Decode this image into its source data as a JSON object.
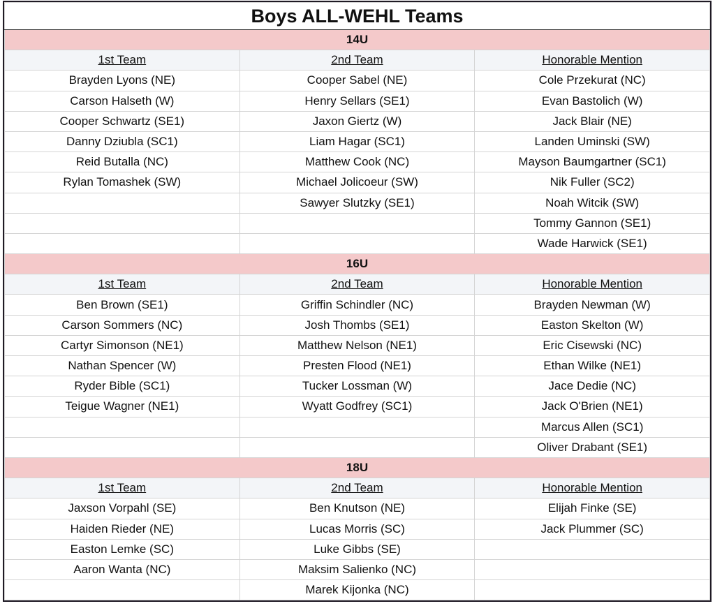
{
  "title": "Boys ALL-WEHL Teams",
  "column_headers": [
    "1st Team",
    "2nd Team",
    "Honorable Mention"
  ],
  "colors": {
    "band": "#f4c9ca",
    "header_row": "#f3f5f8"
  },
  "sections": [
    {
      "label": "14U",
      "rows": [
        [
          "Brayden Lyons (NE)",
          "Cooper Sabel (NE)",
          "Cole Przekurat (NC)"
        ],
        [
          "Carson Halseth (W)",
          "Henry Sellars (SE1)",
          "Evan Bastolich (W)"
        ],
        [
          "Cooper Schwartz (SE1)",
          "Jaxon Giertz (W)",
          "Jack Blair (NE)"
        ],
        [
          "Danny Dziubla (SC1)",
          "Liam Hagar (SC1)",
          "Landen Uminski (SW)"
        ],
        [
          "Reid Butalla (NC)",
          "Matthew Cook (NC)",
          "Mayson Baumgartner (SC1)"
        ],
        [
          "Rylan Tomashek (SW)",
          "Michael Jolicoeur (SW)",
          "Nik Fuller (SC2)"
        ],
        [
          "",
          "Sawyer Slutzky (SE1)",
          "Noah Witcik (SW)"
        ],
        [
          "",
          "",
          "Tommy Gannon (SE1)"
        ],
        [
          "",
          "",
          "Wade Harwick (SE1)"
        ]
      ]
    },
    {
      "label": "16U",
      "rows": [
        [
          "Ben Brown (SE1)",
          "Griffin Schindler (NC)",
          "Brayden Newman (W)"
        ],
        [
          "Carson Sommers (NC)",
          "Josh Thombs (SE1)",
          "Easton Skelton (W)"
        ],
        [
          "Cartyr Simonson (NE1)",
          "Matthew Nelson (NE1)",
          "Eric Cisewski (NC)"
        ],
        [
          "Nathan Spencer (W)",
          "Presten Flood (NE1)",
          "Ethan Wilke (NE1)"
        ],
        [
          "Ryder Bible (SC1)",
          "Tucker Lossman (W)",
          "Jace Dedie (NC)"
        ],
        [
          "Teigue Wagner (NE1)",
          "Wyatt Godfrey (SC1)",
          "Jack O'Brien (NE1)"
        ],
        [
          "",
          "",
          "Marcus Allen (SC1)"
        ],
        [
          "",
          "",
          "Oliver Drabant (SE1)"
        ]
      ]
    },
    {
      "label": "18U",
      "rows": [
        [
          "Jaxson Vorpahl (SE)",
          "Ben Knutson (NE)",
          "Elijah Finke (SE)"
        ],
        [
          "Haiden Rieder (NE)",
          "Lucas Morris (SC)",
          "Jack Plummer (SC)"
        ],
        [
          "Easton Lemke (SC)",
          "Luke Gibbs (SE)",
          ""
        ],
        [
          "Aaron Wanta (NC)",
          "Maksim Salienko (NC)",
          ""
        ],
        [
          "",
          "Marek Kijonka (NC)",
          ""
        ]
      ]
    }
  ]
}
